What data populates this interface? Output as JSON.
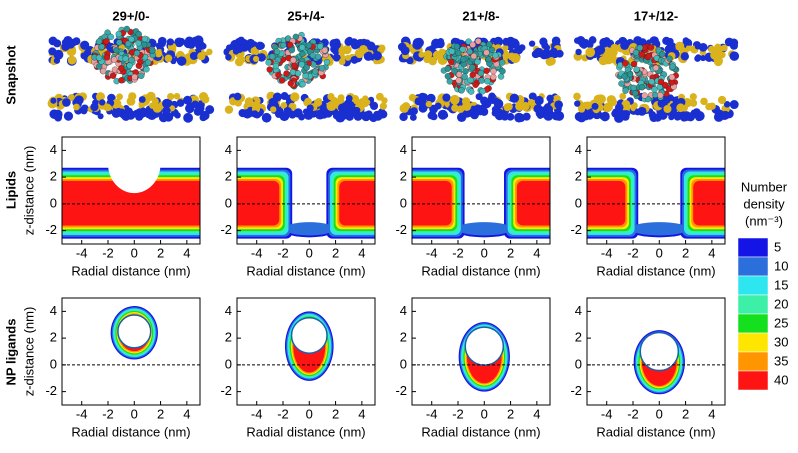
{
  "figure": {
    "columns": [
      "29+/0-",
      "25+/4-",
      "21+/8-",
      "17+/12-"
    ],
    "rows": [
      "Snapshot",
      "Lipids",
      "NP ligands"
    ],
    "colorbar": {
      "title": [
        "Number",
        "density",
        "(nm⁻³)"
      ],
      "levels": [
        5,
        10,
        15,
        20,
        25,
        30,
        35,
        40
      ],
      "colors": [
        "#1414e6",
        "#2a6fdc",
        "#2ee6f0",
        "#3cf0a8",
        "#14e01e",
        "#ffe600",
        "#ff9600",
        "#ff1414"
      ]
    }
  },
  "chart_data": [
    {
      "type": "contour",
      "row": "Lipids",
      "xlabel": "Radial distance (nm)",
      "ylabel": "z-distance (nm)",
      "xlim": [
        -5.5,
        5
      ],
      "ylim": [
        -3,
        5
      ],
      "xticks": [
        -4,
        -2,
        0,
        2,
        4
      ],
      "yticks": [
        -2,
        0,
        2,
        4
      ]
    },
    {
      "type": "contour",
      "row": "Lipids",
      "xlabel": "Radial distance (nm)",
      "xlim": [
        -5.5,
        5
      ],
      "ylim": [
        -3,
        5
      ],
      "xticks": [
        -4,
        -2,
        0,
        2,
        4
      ],
      "yticks": [
        -2,
        0,
        2,
        4
      ]
    },
    {
      "type": "contour",
      "row": "Lipids",
      "xlabel": "Radial distance (nm)",
      "xlim": [
        -5.5,
        5
      ],
      "ylim": [
        -3,
        5
      ],
      "xticks": [
        -4,
        -2,
        0,
        2,
        4
      ],
      "yticks": [
        -2,
        0,
        2,
        4
      ]
    },
    {
      "type": "contour",
      "row": "Lipids",
      "xlabel": "Radial distance (nm)",
      "xlim": [
        -5.5,
        5
      ],
      "ylim": [
        -3,
        5
      ],
      "xticks": [
        -4,
        -2,
        0,
        2,
        4
      ],
      "yticks": [
        -2,
        0,
        2,
        4
      ]
    },
    {
      "type": "contour",
      "row": "NP ligands",
      "xlabel": "Radial distance (nm)",
      "ylabel": "z-distance (nm)",
      "xlim": [
        -5.5,
        5
      ],
      "ylim": [
        -3,
        5
      ],
      "xticks": [
        -4,
        -2,
        0,
        2,
        4
      ],
      "yticks": [
        -2,
        0,
        2,
        4
      ]
    },
    {
      "type": "contour",
      "row": "NP ligands",
      "xlabel": "Radial distance (nm)",
      "xlim": [
        -5.5,
        5
      ],
      "ylim": [
        -3,
        5
      ],
      "xticks": [
        -4,
        -2,
        0,
        2,
        4
      ],
      "yticks": [
        -2,
        0,
        2,
        4
      ]
    },
    {
      "type": "contour",
      "row": "NP ligands",
      "xlabel": "Radial distance (nm)",
      "xlim": [
        -5.5,
        5
      ],
      "ylim": [
        -3,
        5
      ],
      "xticks": [
        -4,
        -2,
        0,
        2,
        4
      ],
      "yticks": [
        -2,
        0,
        2,
        4
      ]
    },
    {
      "type": "contour",
      "row": "NP ligands",
      "xlabel": "Radial distance (nm)",
      "xlim": [
        -5.5,
        5
      ],
      "ylim": [
        -3,
        5
      ],
      "xticks": [
        -4,
        -2,
        0,
        2,
        4
      ],
      "yticks": [
        -2,
        0,
        2,
        4
      ]
    }
  ]
}
